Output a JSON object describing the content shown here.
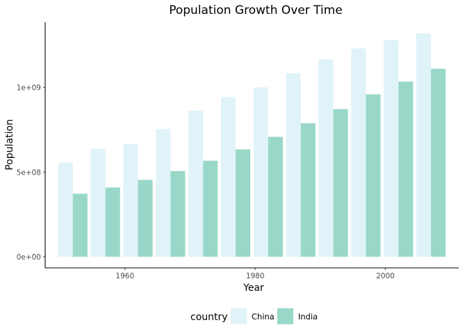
{
  "chart_data": {
    "type": "bar",
    "title": "Population Growth Over Time",
    "xlabel": "Year",
    "ylabel": "Population",
    "x": [
      1952,
      1957,
      1962,
      1967,
      1972,
      1977,
      1982,
      1987,
      1992,
      1997,
      2002,
      2007
    ],
    "series": [
      {
        "name": "China",
        "color": "#e0f3f8",
        "values": [
          556263527,
          637408000,
          665770000,
          754550000,
          862030000,
          943455000,
          1000281000,
          1084035000,
          1164970000,
          1230075000,
          1280400000,
          1318683096
        ]
      },
      {
        "name": "India",
        "color": "#99d8c9",
        "values": [
          372000000,
          409000000,
          454000000,
          506000000,
          567000000,
          634000000,
          708000000,
          788000000,
          872000000,
          959000000,
          1034172547,
          1110396331
        ]
      }
    ],
    "xlim": [
      1947.75,
      2011.25
    ],
    "ylim": [
      -65934155,
      1384617251
    ],
    "x_ticks": [
      1960,
      1980,
      2000
    ],
    "x_tick_labels": [
      "1960",
      "1980",
      "2000"
    ],
    "y_ticks": [
      0,
      500000000,
      1000000000
    ],
    "y_tick_labels": [
      "0e+00",
      "5e+08",
      "1e+09"
    ],
    "legend": {
      "title": "country",
      "position": "bottom"
    },
    "grid": false
  }
}
